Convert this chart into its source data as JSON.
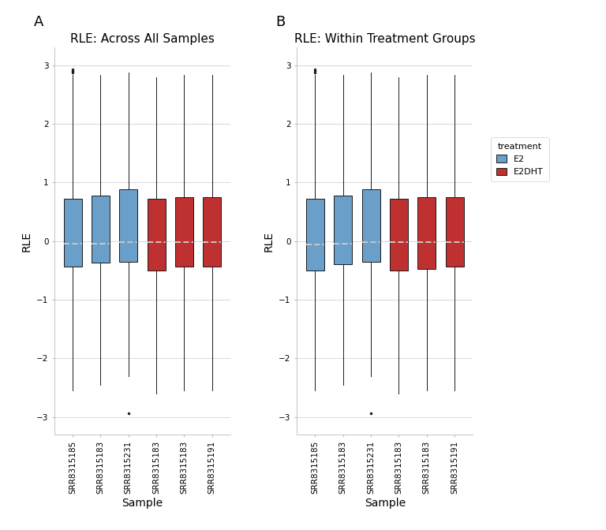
{
  "title_A": "RLE: Across All Samples",
  "title_B": "RLE: Within Treatment Groups",
  "xlabel": "Sample",
  "ylabel": "RLE",
  "label_A": "A",
  "label_B": "B",
  "ylim": [
    -3.3,
    3.3
  ],
  "yticks": [
    -3,
    -2,
    -1,
    0,
    1,
    2,
    3
  ],
  "colors": {
    "E2": "#6a9fca",
    "E2DHT": "#bf3030",
    "box_edge": "#1a1a1a",
    "whisker": "#1a1a1a",
    "median": "#c8c8c8",
    "outlier": "#1a1a1a",
    "background": "#ffffff",
    "panel_bg": "#ffffff",
    "grid": "#d8d8d8"
  },
  "legend_title": "treatment",
  "legend_labels": [
    "E2",
    "E2DHT"
  ],
  "n_samples": 6,
  "treatments": [
    "E2",
    "E2",
    "E2",
    "E2DHT",
    "E2DHT",
    "E2DHT"
  ],
  "box_stats_A": {
    "q1": [
      -0.43,
      -0.36,
      -0.35,
      -0.5,
      -0.44,
      -0.44
    ],
    "median": [
      -0.05,
      -0.05,
      -0.01,
      -0.01,
      -0.02,
      -0.01
    ],
    "q3": [
      0.72,
      0.78,
      0.88,
      0.72,
      0.75,
      0.75
    ],
    "whislo": [
      -2.55,
      -2.45,
      -2.3,
      -2.6,
      -2.55,
      -2.55
    ],
    "whishi": [
      2.83,
      2.83,
      2.88,
      2.8,
      2.83,
      2.83
    ],
    "fliers_low": [
      [],
      [],
      [
        -2.93
      ],
      [],
      [],
      []
    ],
    "fliers_high": [
      [
        2.93,
        2.9,
        2.87
      ],
      [],
      [],
      [],
      [],
      []
    ]
  },
  "box_stats_B": {
    "q1": [
      -0.5,
      -0.4,
      -0.35,
      -0.5,
      -0.47,
      -0.44
    ],
    "median": [
      -0.06,
      -0.05,
      -0.01,
      -0.01,
      -0.02,
      -0.01
    ],
    "q3": [
      0.72,
      0.78,
      0.88,
      0.72,
      0.75,
      0.75
    ],
    "whislo": [
      -2.55,
      -2.45,
      -2.3,
      -2.6,
      -2.55,
      -2.55
    ],
    "whishi": [
      2.83,
      2.83,
      2.88,
      2.8,
      2.83,
      2.83
    ],
    "fliers_low": [
      [],
      [],
      [
        -2.93
      ],
      [],
      [],
      []
    ],
    "fliers_high": [
      [
        2.93,
        2.9,
        2.87
      ],
      [],
      [],
      [],
      [],
      []
    ]
  },
  "xticklabels": [
    "SRR8315185",
    "SRR8315183",
    "SRR8315231",
    "SRR8315183",
    "SRR8315183",
    "SRR8315191"
  ],
  "fontsize_title": 11,
  "fontsize_label": 10,
  "fontsize_tick": 7.5,
  "fontsize_panel_label": 13
}
